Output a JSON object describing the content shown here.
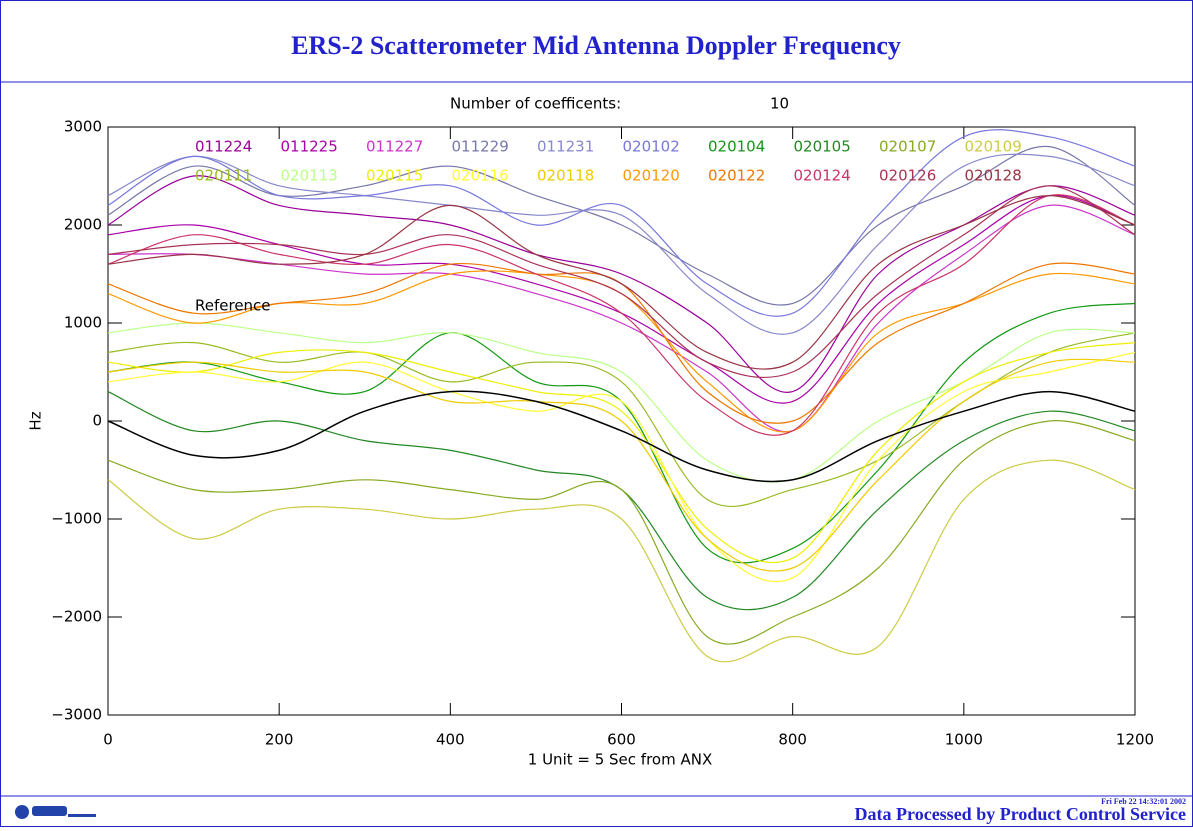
{
  "chart_data": {
    "type": "line",
    "title": "ERS-2 Scatterometer Mid Antenna Doppler Frequency",
    "coefficients_label": "Number of coefficents:",
    "coefficients": 10,
    "xlabel": "1 Unit  = 5 Sec from ANX",
    "ylabel": "Hz",
    "annotation": "Reference",
    "footer": "Data Processed by Product Control Service",
    "timestamp": "Fri Feb 22 14:32:01 2002",
    "xlim": [
      0,
      1200
    ],
    "ylim": [
      -3000,
      3000
    ],
    "xticks": [
      0,
      200,
      400,
      600,
      800,
      1000,
      1200
    ],
    "yticks": [
      {
        "value": -3000,
        "label": "−3000"
      },
      {
        "value": -2000,
        "label": "−2000"
      },
      {
        "value": -1000,
        "label": "−1000"
      },
      0,
      1000,
      2000,
      3000
    ],
    "x": [
      0,
      100,
      200,
      300,
      400,
      500,
      600,
      700,
      800,
      900,
      1000,
      1100,
      1200
    ],
    "series": [
      {
        "name": "011224",
        "color": "#990099",
        "values": [
          2000,
          2500,
          2200,
          2100,
          2000,
          1700,
          1500,
          1000,
          300,
          1500,
          2000,
          2400,
          2100
        ]
      },
      {
        "name": "011225",
        "color": "#aa00aa",
        "values": [
          1900,
          2000,
          1800,
          1600,
          1600,
          1400,
          1100,
          600,
          200,
          1200,
          1800,
          2300,
          2000
        ]
      },
      {
        "name": "011227",
        "color": "#cc33cc",
        "values": [
          1700,
          1700,
          1600,
          1500,
          1500,
          1300,
          1000,
          500,
          -100,
          1000,
          1700,
          2200,
          1900
        ]
      },
      {
        "name": "011229",
        "color": "#7777aa",
        "values": [
          2100,
          2600,
          2300,
          2400,
          2600,
          2300,
          2000,
          1500,
          1200,
          2000,
          2400,
          2800,
          2200
        ]
      },
      {
        "name": "011231",
        "color": "#8888cc",
        "values": [
          2300,
          2700,
          2400,
          2300,
          2200,
          2100,
          2100,
          1300,
          900,
          1800,
          2600,
          2700,
          2400
        ]
      },
      {
        "name": "020102",
        "color": "#7777dd",
        "values": [
          2200,
          2700,
          2300,
          2300,
          2400,
          2000,
          2200,
          1400,
          1100,
          2100,
          2900,
          2900,
          2600
        ]
      },
      {
        "name": "020104",
        "color": "#119911",
        "values": [
          500,
          600,
          400,
          300,
          900,
          400,
          200,
          -1300,
          -1300,
          -500,
          600,
          1100,
          1200
        ]
      },
      {
        "name": "020105",
        "color": "#228822",
        "values": [
          300,
          -100,
          0,
          -200,
          -300,
          -500,
          -700,
          -1800,
          -1800,
          -900,
          -200,
          100,
          -100
        ]
      },
      {
        "name": "020107",
        "color": "#88aa22",
        "values": [
          -400,
          -700,
          -700,
          -600,
          -700,
          -800,
          -700,
          -2200,
          -2000,
          -1500,
          -400,
          0,
          -200
        ]
      },
      {
        "name": "020109",
        "color": "#cccc44",
        "values": [
          -600,
          -1200,
          -900,
          -900,
          -1000,
          -900,
          -1000,
          -2400,
          -2200,
          -2300,
          -800,
          -400,
          -700
        ]
      },
      {
        "name": "020111",
        "color": "#99bb22",
        "values": [
          700,
          800,
          600,
          700,
          400,
          600,
          400,
          -800,
          -700,
          -400,
          200,
          700,
          900
        ]
      },
      {
        "name": "020113",
        "color": "#bbff88",
        "values": [
          900,
          1000,
          900,
          800,
          900,
          700,
          500,
          -400,
          -600,
          0,
          400,
          900,
          900
        ]
      },
      {
        "name": "020115",
        "color": "#eeee00",
        "values": [
          600,
          500,
          700,
          700,
          500,
          300,
          100,
          -1100,
          -1400,
          -300,
          400,
          700,
          800
        ]
      },
      {
        "name": "020116",
        "color": "#ffff33",
        "values": [
          400,
          500,
          400,
          600,
          300,
          100,
          200,
          -1200,
          -1600,
          -400,
          300,
          500,
          700
        ]
      },
      {
        "name": "020118",
        "color": "#eecc00",
        "values": [
          500,
          600,
          500,
          500,
          200,
          200,
          0,
          -1200,
          -1500,
          -600,
          200,
          600,
          600
        ]
      },
      {
        "name": "020120",
        "color": "#ff9900",
        "values": [
          1300,
          1000,
          1200,
          1200,
          1500,
          1500,
          1300,
          400,
          -100,
          900,
          1200,
          1500,
          1400
        ]
      },
      {
        "name": "020122",
        "color": "#ee7700",
        "values": [
          1400,
          1100,
          1200,
          1300,
          1600,
          1500,
          1400,
          300,
          0,
          800,
          1200,
          1600,
          1500
        ]
      },
      {
        "name": "020124",
        "color": "#cc3366",
        "values": [
          1600,
          1900,
          1700,
          1600,
          1800,
          1500,
          1100,
          200,
          -100,
          1100,
          1600,
          2300,
          2000
        ]
      },
      {
        "name": "020126",
        "color": "#aa3355",
        "values": [
          1700,
          1800,
          1800,
          1700,
          1900,
          1600,
          1300,
          600,
          500,
          1300,
          1900,
          2400,
          1900
        ]
      },
      {
        "name": "020128",
        "color": "#993344",
        "values": [
          1600,
          1700,
          1600,
          1700,
          2200,
          1700,
          1400,
          700,
          600,
          1600,
          2000,
          2300,
          2000
        ]
      }
    ],
    "reference": {
      "color": "#000000",
      "values": [
        0,
        -350,
        -300,
        100,
        300,
        200,
        -100,
        -500,
        -600,
        -200,
        100,
        300,
        100
      ]
    }
  }
}
